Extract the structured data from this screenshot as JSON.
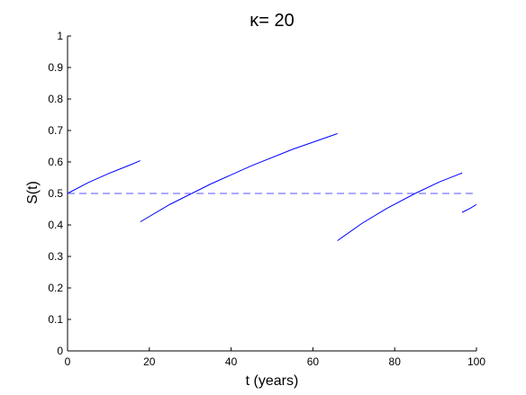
{
  "chart_data": {
    "type": "line",
    "title": "κ= 20",
    "xlabel": "t (years)",
    "ylabel": "S(t)",
    "xlim": [
      0,
      100
    ],
    "ylim": [
      0,
      1
    ],
    "x_ticks": [
      0,
      20,
      40,
      60,
      80,
      100
    ],
    "y_ticks": [
      0,
      0.1,
      0.2,
      0.3,
      0.4,
      0.5,
      0.6,
      0.7,
      0.8,
      0.9,
      1
    ],
    "grid": false,
    "legend": "none",
    "colors": {
      "series": "#0000ff",
      "reference": "#5555ff",
      "axes": "#000000"
    },
    "series": [
      {
        "style": "solid",
        "segments": [
          {
            "x": [
              0,
              5,
              10,
              15,
              17.8
            ],
            "y": [
              0.5,
              0.534,
              0.563,
              0.589,
              0.604
            ]
          },
          {
            "x": [
              17.8,
              25,
              35,
              45,
              55,
              66
            ],
            "y": [
              0.41,
              0.465,
              0.53,
              0.588,
              0.64,
              0.69
            ]
          },
          {
            "x": [
              66,
              72,
              78,
              85,
              91,
              96.5
            ],
            "y": [
              0.35,
              0.405,
              0.452,
              0.5,
              0.537,
              0.565
            ]
          },
          {
            "x": [
              96.5,
              98.5,
              100
            ],
            "y": [
              0.44,
              0.453,
              0.465
            ]
          }
        ]
      },
      {
        "style": "dashed",
        "segments": [
          {
            "x": [
              0,
              100
            ],
            "y": [
              0.5,
              0.5
            ]
          }
        ]
      }
    ]
  }
}
